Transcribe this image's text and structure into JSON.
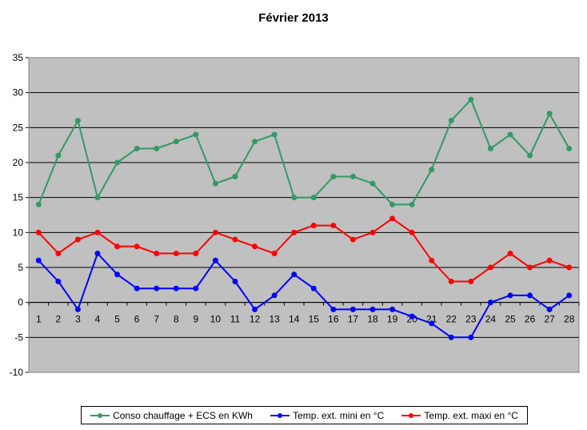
{
  "chart_data": {
    "type": "line",
    "title": "Février 2013",
    "categories": [
      "1",
      "2",
      "3",
      "4",
      "5",
      "6",
      "7",
      "8",
      "9",
      "10",
      "11",
      "12",
      "13",
      "14",
      "15",
      "16",
      "17",
      "18",
      "19",
      "20",
      "21",
      "22",
      "23",
      "24",
      "25",
      "26",
      "27",
      "28"
    ],
    "ylim": [
      -10,
      35
    ],
    "yticks": [
      35,
      30,
      25,
      20,
      15,
      10,
      5,
      0,
      -5,
      -10
    ],
    "grid": true,
    "plot_background": "#c0c0c0",
    "legend_position": "bottom",
    "series": [
      {
        "name": "Conso chauffage + ECS en KWh",
        "color": "#339966",
        "values": [
          14,
          21,
          26,
          15,
          20,
          22,
          22,
          23,
          24,
          17,
          18,
          23,
          24,
          15,
          15,
          18,
          18,
          17,
          14,
          14,
          19,
          26,
          29,
          22,
          24,
          21,
          27,
          22
        ]
      },
      {
        "name": "Temp. ext. mini en °C",
        "color": "#0000ff",
        "values": [
          6,
          3,
          -1,
          7,
          4,
          2,
          2,
          2,
          2,
          6,
          3,
          -1,
          1,
          4,
          2,
          -1,
          -1,
          -1,
          -1,
          -2,
          -3,
          -5,
          -5,
          0,
          1,
          1,
          -1,
          1
        ]
      },
      {
        "name": "Temp. ext. maxi en °C",
        "color": "#ff0000",
        "values": [
          10,
          7,
          9,
          10,
          8,
          8,
          7,
          7,
          7,
          10,
          9,
          8,
          7,
          10,
          11,
          11,
          9,
          10,
          12,
          10,
          6,
          3,
          3,
          5,
          7,
          5,
          6,
          5
        ]
      }
    ]
  }
}
